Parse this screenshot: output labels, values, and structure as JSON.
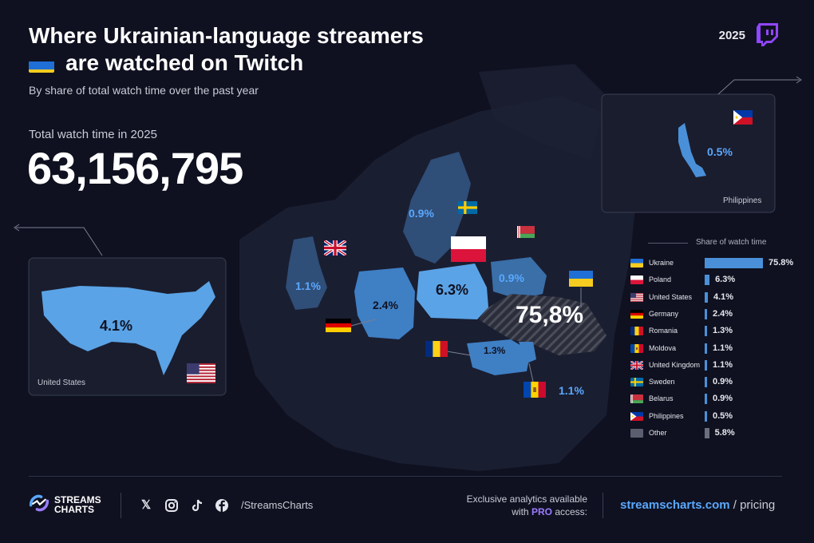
{
  "header": {
    "title_line1": "Where Ukrainian-language streamers",
    "title_line2": "are watched on Twitch",
    "subtitle": "By share of total watch time over the past year",
    "year": "2025"
  },
  "total": {
    "label": "Total watch time in 2025",
    "value": "63,156,795"
  },
  "map_labels": {
    "ukraine": "75,8%",
    "poland": "6.3%",
    "united_states": "4.1%",
    "germany": "2.4%",
    "romania": "1.3%",
    "moldova": "1.1%",
    "united_kingdom": "1.1%",
    "sweden": "0.9%",
    "belarus": "0.9%",
    "philippines": "0.5%"
  },
  "insets": {
    "us_name": "United States",
    "ph_name": "Philippines"
  },
  "colors": {
    "background": "#0f1120",
    "land": "#2a2f45",
    "highlight": "#4a90d9",
    "highlight_dark": "#3a78bd",
    "other_bar": "#6b6f7e",
    "accent_link": "#5aa8ff",
    "pro": "#9b7bff",
    "twitch": "#9146ff"
  },
  "chart_data": {
    "type": "bar",
    "title": "Share of watch time",
    "categories": [
      "Ukraine",
      "Poland",
      "United States",
      "Germany",
      "Romania",
      "Moldova",
      "United Kingdom",
      "Sweden",
      "Belarus",
      "Philippines",
      "Other"
    ],
    "values": [
      75.8,
      6.3,
      4.1,
      2.4,
      1.3,
      1.1,
      1.1,
      0.9,
      0.9,
      0.5,
      5.8
    ],
    "value_labels": [
      "75.8%",
      "6.3%",
      "4.1%",
      "2.4%",
      "1.3%",
      "1.1%",
      "1.1%",
      "0.9%",
      "0.9%",
      "0.5%",
      "5.8%"
    ],
    "flags": [
      "ua",
      "pl",
      "us",
      "de",
      "ro",
      "md",
      "gb",
      "se",
      "by",
      "ph",
      "other"
    ],
    "orientation": "horizontal",
    "xlim": [
      0,
      75.8
    ],
    "grid": false
  },
  "footer": {
    "brand_line1": "STREAMS",
    "brand_line2": "CHARTS",
    "handle": "/StreamsCharts",
    "promo_line1": "Exclusive analytics available",
    "promo_with": "with",
    "promo_pro": "PRO",
    "promo_access": "access:",
    "site": "streamscharts.com",
    "site_suffix": "/ pricing",
    "social_icons": [
      "x-icon",
      "instagram-icon",
      "tiktok-icon",
      "facebook-icon"
    ]
  }
}
